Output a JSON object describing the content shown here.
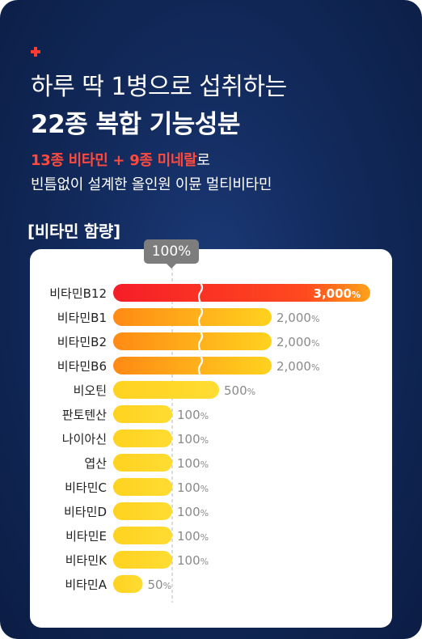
{
  "header": {
    "line1": "하루 딱 1병으로 섭취하는",
    "line2": "22종 복합 기능성분",
    "highlight1": "13종 비타민",
    "plus_sign": " + ",
    "highlight2": "9종 미네랄",
    "suffix": "로",
    "line4": "빈틈없이 설계한 올인원 이뮨 멀티비타민"
  },
  "section_label": "[비타민 함량]",
  "reference_label": "100%",
  "colors": {
    "background": "#122a5c",
    "bar_yellow": "#ffd21f",
    "bar_orange": "#ffa21a",
    "bar_red": "#f51d28",
    "accent": "#ff4a3d"
  },
  "chart_data": {
    "type": "bar",
    "orientation": "horizontal",
    "unit": "%",
    "reference_value": 100,
    "axis_break": true,
    "categories": [
      "비타민B12",
      "비타민B1",
      "비타민B2",
      "비타민B6",
      "비오틴",
      "판토텐산",
      "나이아신",
      "엽산",
      "비타민C",
      "비타민D",
      "비타민E",
      "비타민K",
      "비타민A"
    ],
    "values": [
      3000,
      2000,
      2000,
      2000,
      500,
      100,
      100,
      100,
      100,
      100,
      100,
      100,
      50
    ],
    "value_labels": [
      "3,000%",
      "2,000%",
      "2,000%",
      "2,000%",
      "500%",
      "100%",
      "100%",
      "100%",
      "100%",
      "100%",
      "100%",
      "100%",
      "50%"
    ]
  }
}
